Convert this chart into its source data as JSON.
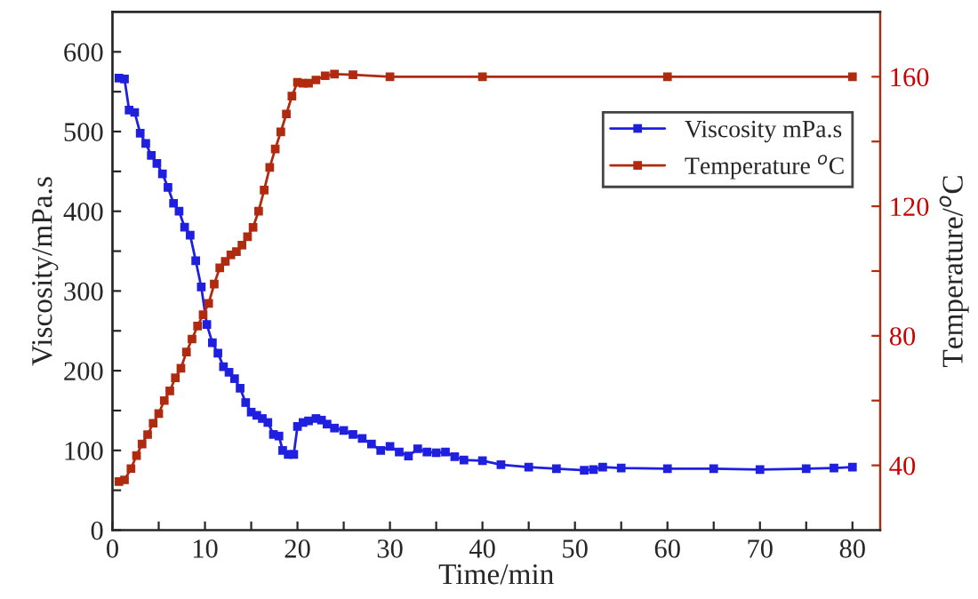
{
  "chart_data": {
    "type": "line",
    "xlabel": "Time/min",
    "ylabel": "Viscosity/mPa.s",
    "y2label": "Temperature/$^{o}$C",
    "xlim": [
      0,
      83
    ],
    "xticks": [
      0,
      {
        "value": 5,
        "label": null
      },
      10,
      {
        "value": 15,
        "label": null
      },
      20,
      {
        "value": 25,
        "label": null
      },
      30,
      {
        "value": 35,
        "label": null
      },
      40,
      {
        "value": 45,
        "label": null
      },
      50,
      {
        "value": 55,
        "label": null
      },
      60,
      {
        "value": 65,
        "label": null
      },
      70,
      {
        "value": 75,
        "label": null
      },
      80
    ],
    "ylim": [
      0,
      650
    ],
    "yticks": [
      0,
      {
        "value": 50,
        "label": null
      },
      100,
      {
        "value": 150,
        "label": null
      },
      200,
      {
        "value": 250,
        "label": null
      },
      300,
      {
        "value": 350,
        "label": null
      },
      400,
      {
        "value": 450,
        "label": null
      },
      500,
      {
        "value": 550,
        "label": null
      },
      600
    ],
    "y2lim": [
      20,
      180
    ],
    "y2ticks": [
      40,
      {
        "value": 60,
        "label": null
      },
      80,
      {
        "value": 100,
        "label": null
      },
      120,
      {
        "value": 140,
        "label": null
      },
      160
    ],
    "marker": "square",
    "grid": false,
    "legend": "top right",
    "series": [
      {
        "name": "Viscosity mPa.s",
        "color": "#1f1fe0",
        "axis": "y",
        "x": [
          0.7,
          1.3,
          1.8,
          2.4,
          3,
          3.6,
          4.2,
          4.8,
          5.4,
          6,
          6.6,
          7.2,
          7.8,
          8.4,
          9,
          9.6,
          10.2,
          10.8,
          11.4,
          12,
          12.6,
          13.2,
          13.8,
          14.4,
          15,
          15.6,
          16.2,
          16.8,
          17.4,
          18,
          18.4,
          19,
          19.6,
          20,
          20.6,
          21.2,
          22,
          22.6,
          23.2,
          24,
          25,
          26,
          27,
          28,
          29,
          30,
          31,
          32,
          33,
          34,
          35,
          36,
          37,
          38,
          40,
          42,
          45,
          48,
          51,
          52,
          53,
          55,
          60,
          65,
          70,
          75,
          78,
          80
        ],
        "values": [
          567,
          566,
          527,
          524,
          498,
          485,
          470,
          460,
          447,
          430,
          410,
          400,
          380,
          370,
          338,
          305,
          258,
          235,
          222,
          205,
          198,
          190,
          178,
          160,
          148,
          144,
          140,
          135,
          120,
          118,
          100,
          95,
          95,
          130,
          135,
          137,
          140,
          138,
          133,
          128,
          125,
          120,
          115,
          108,
          100,
          105,
          98,
          93,
          102,
          98,
          97,
          98,
          92,
          88,
          87,
          82,
          79,
          77,
          75,
          76,
          79,
          78,
          77,
          77,
          76,
          77,
          78,
          79
        ]
      },
      {
        "name": "Temperature $^{o}$C",
        "color": "#b02a10",
        "axis": "y2",
        "x": [
          0.7,
          1.3,
          2,
          2.6,
          3.2,
          3.8,
          4.4,
          5,
          5.6,
          6.2,
          6.8,
          7.4,
          8,
          8.6,
          9.2,
          9.8,
          10.4,
          11,
          11.6,
          12.2,
          12.8,
          13.4,
          14,
          14.6,
          15.2,
          15.8,
          16.4,
          17,
          17.6,
          18.2,
          18.8,
          19.4,
          20,
          20.6,
          21.2,
          22,
          23,
          24,
          26,
          30,
          40,
          60,
          80
        ],
        "values": [
          35,
          35.5,
          39,
          43,
          46.6,
          49.5,
          53,
          56,
          60,
          63,
          67,
          70,
          75,
          79,
          83,
          86.5,
          90,
          96,
          101,
          103,
          105,
          106,
          108,
          110.6,
          113.5,
          118.5,
          125,
          132,
          137.7,
          143,
          148.5,
          154,
          158.3,
          158,
          158,
          159,
          160.3,
          160.8,
          160.6,
          160,
          160,
          160,
          160
        ]
      }
    ]
  }
}
